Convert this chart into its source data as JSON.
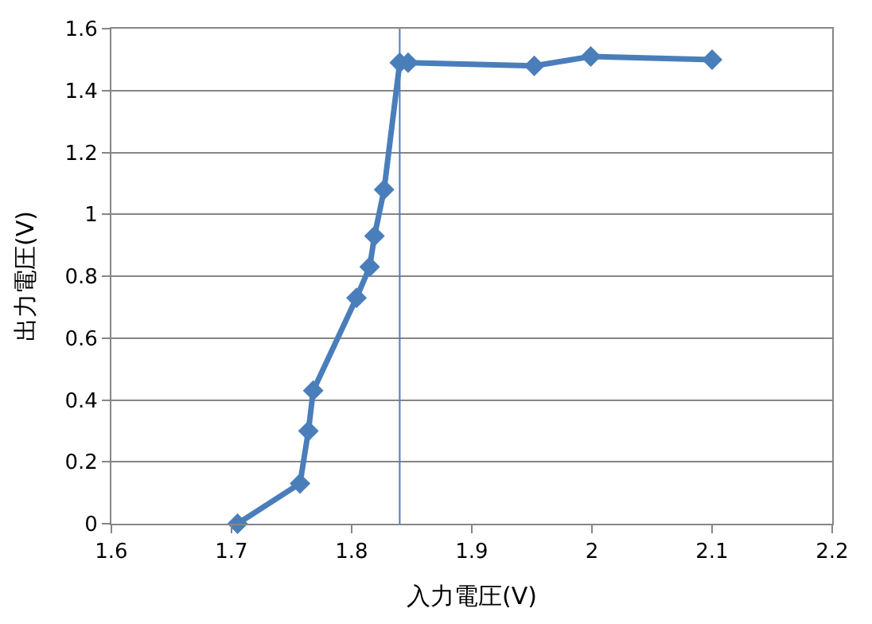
{
  "chart_data": {
    "type": "line",
    "xlabel": "入力電圧(V)",
    "ylabel": "出力電圧(V)",
    "x": [
      1.705,
      1.757,
      1.764,
      1.768,
      1.804,
      1.815,
      1.819,
      1.827,
      1.84,
      1.847,
      1.952,
      1.999,
      2.1
    ],
    "series": [
      {
        "color": "#4a7ebb",
        "values": [
          0,
          0.13,
          0.3,
          0.43,
          0.73,
          0.83,
          0.93,
          1.08,
          1.49,
          1.49,
          1.48,
          1.51,
          1.5
        ]
      }
    ],
    "xlim": [
      1.6,
      2.2
    ],
    "xticks": [
      1.6,
      1.7,
      1.8,
      1.9,
      2,
      2.1,
      2.2
    ],
    "ylim": [
      0,
      1.6
    ],
    "yticks": [
      0,
      0.2,
      0.4,
      0.6,
      0.8,
      1,
      1.2,
      1.4,
      1.6
    ],
    "ref_lines": [
      {
        "axis": "x",
        "value": 1.84,
        "color": "#4a7ebb"
      }
    ],
    "grid": "y",
    "marker": "diamond",
    "line_style": "solid",
    "legend": false
  }
}
